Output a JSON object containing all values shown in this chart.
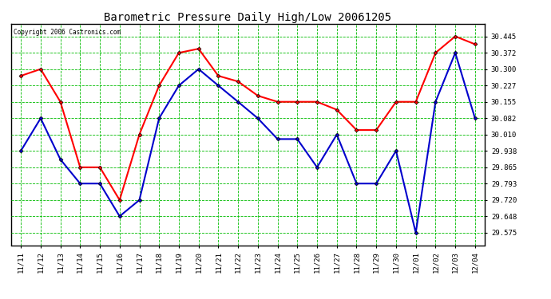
{
  "title": "Barometric Pressure Daily High/Low 20061205",
  "copyright": "Copyright 2006 Castronics.com",
  "x_labels": [
    "11/11",
    "11/12",
    "11/13",
    "11/14",
    "11/15",
    "11/16",
    "11/17",
    "11/18",
    "11/19",
    "11/20",
    "11/21",
    "11/22",
    "11/23",
    "11/24",
    "11/25",
    "11/26",
    "11/27",
    "11/28",
    "11/29",
    "11/30",
    "12/01",
    "12/02",
    "12/03",
    "12/04"
  ],
  "high_values": [
    30.27,
    30.3,
    30.155,
    29.865,
    29.865,
    29.72,
    30.01,
    30.227,
    30.372,
    30.39,
    30.27,
    30.245,
    30.182,
    30.155,
    30.155,
    30.155,
    30.12,
    30.03,
    30.03,
    30.155,
    30.155,
    30.372,
    30.445,
    30.41
  ],
  "low_values": [
    29.938,
    30.082,
    29.9,
    29.793,
    29.793,
    29.648,
    29.72,
    30.082,
    30.227,
    30.3,
    30.227,
    30.155,
    30.082,
    29.99,
    29.99,
    29.865,
    30.01,
    29.793,
    29.793,
    29.938,
    29.575,
    30.155,
    30.372,
    30.082
  ],
  "high_color": "#ff0000",
  "low_color": "#0000cc",
  "bg_color": "#ffffff",
  "plot_bg_color": "#ffffff",
  "grid_color": "#00bb00",
  "title_color": "#000000",
  "copyright_color": "#000000",
  "y_ticks": [
    29.575,
    29.648,
    29.72,
    29.793,
    29.865,
    29.938,
    30.01,
    30.082,
    30.155,
    30.227,
    30.3,
    30.372,
    30.445
  ],
  "ylim": [
    29.52,
    30.5
  ],
  "marker": "D",
  "marker_size": 2.5,
  "line_width": 1.5,
  "figsize": [
    6.9,
    3.75
  ],
  "dpi": 100
}
